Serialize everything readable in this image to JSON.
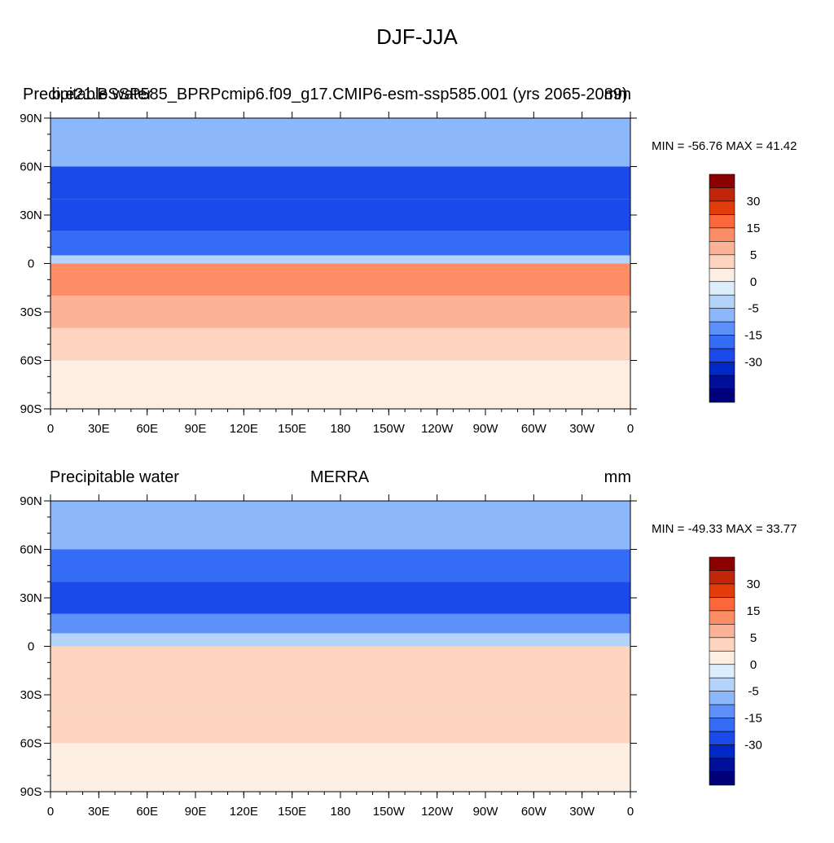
{
  "figure_title": "DJF-JJA",
  "chart_data": [
    {
      "type": "heatmap",
      "title_left": "Precipitable water",
      "title_center": "b.e21.BSSP585_BPRPcmip6.f09_g17.CMIP6-esm-ssp585.001 (yrs 2065-2089)",
      "units": "mm",
      "min": -56.76,
      "max": 41.42,
      "min_max_label": "MIN = -56.76 MAX =  41.42",
      "xlim": [
        0,
        360
      ],
      "ylim": [
        -90,
        90
      ],
      "x_ticks": [
        "0",
        "30E",
        "60E",
        "90E",
        "120E",
        "150E",
        "180",
        "150W",
        "120W",
        "90W",
        "60W",
        "30W",
        "0"
      ],
      "y_ticks": [
        "90N",
        "60N",
        "30N",
        "0",
        "30S",
        "60S",
        "90S"
      ],
      "colorbar_labels": [
        "30",
        "15",
        "5",
        "0",
        "-5",
        "-15",
        "-30"
      ],
      "latitude_bands": [
        {
          "lat_range": [
            60,
            90
          ],
          "value": -10
        },
        {
          "lat_range": [
            40,
            60
          ],
          "value": -25
        },
        {
          "lat_range": [
            20,
            40
          ],
          "value": -28
        },
        {
          "lat_range": [
            5,
            20
          ],
          "value": -18
        },
        {
          "lat_range": [
            0,
            5
          ],
          "value": -5
        },
        {
          "lat_range": [
            -5,
            0
          ],
          "value": 20
        },
        {
          "lat_range": [
            -20,
            -5
          ],
          "value": 15
        },
        {
          "lat_range": [
            -40,
            -20
          ],
          "value": 10
        },
        {
          "lat_range": [
            -60,
            -40
          ],
          "value": 7
        },
        {
          "lat_range": [
            -90,
            -60
          ],
          "value": 2
        }
      ]
    },
    {
      "type": "heatmap",
      "title_left": "Precipitable water",
      "title_center": "MERRA",
      "units": "mm",
      "min": -49.33,
      "max": 33.77,
      "min_max_label": "MIN = -49.33 MAX =  33.77",
      "xlim": [
        0,
        360
      ],
      "ylim": [
        -90,
        90
      ],
      "x_ticks": [
        "0",
        "30E",
        "60E",
        "90E",
        "120E",
        "150E",
        "180",
        "150W",
        "120W",
        "90W",
        "60W",
        "30W",
        "0"
      ],
      "y_ticks": [
        "90N",
        "60N",
        "30N",
        "0",
        "30S",
        "60S",
        "90S"
      ],
      "colorbar_labels": [
        "30",
        "15",
        "5",
        "0",
        "-5",
        "-15",
        "-30"
      ],
      "latitude_bands": [
        {
          "lat_range": [
            60,
            90
          ],
          "value": -8
        },
        {
          "lat_range": [
            40,
            60
          ],
          "value": -20
        },
        {
          "lat_range": [
            20,
            40
          ],
          "value": -24
        },
        {
          "lat_range": [
            8,
            20
          ],
          "value": -15
        },
        {
          "lat_range": [
            0,
            8
          ],
          "value": -3
        },
        {
          "lat_range": [
            -10,
            0
          ],
          "value": 6
        },
        {
          "lat_range": [
            -40,
            -10
          ],
          "value": 9
        },
        {
          "lat_range": [
            -60,
            -40
          ],
          "value": 6
        },
        {
          "lat_range": [
            -90,
            -60
          ],
          "value": 3
        }
      ]
    }
  ],
  "colorbar_colors": [
    "#8b0000",
    "#c1260a",
    "#e23c0b",
    "#f9673b",
    "#fc8d64",
    "#fcb296",
    "#fdd4bf",
    "#fdeee3",
    "#dceefc",
    "#b4d3fb",
    "#8db7fb",
    "#5d90f8",
    "#346cf5",
    "#1a4bea",
    "#0028c6",
    "#000f99",
    "#00007a"
  ]
}
